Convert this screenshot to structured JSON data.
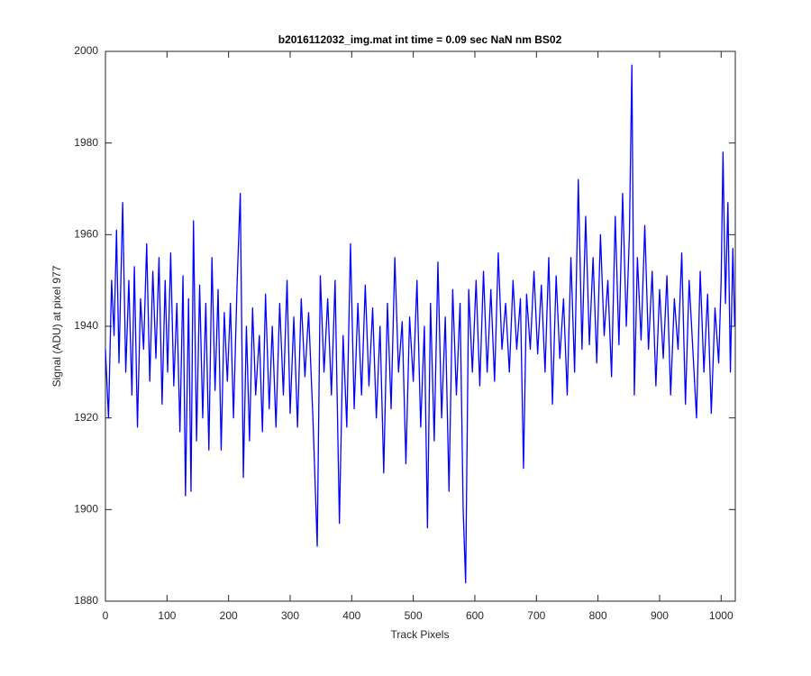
{
  "chart_data": {
    "type": "line",
    "title": "b2016112032_img.mat int time = 0.09 sec  NaN nm BS02",
    "xlabel": "Track Pixels",
    "ylabel": "Signal (ADU) at pixel 977",
    "xlim": [
      0,
      1023
    ],
    "ylim": [
      1880,
      2000
    ],
    "xticks": [
      0,
      100,
      200,
      300,
      400,
      500,
      600,
      700,
      800,
      900,
      1000
    ],
    "yticks": [
      1880,
      1900,
      1920,
      1940,
      1960,
      1980,
      2000
    ],
    "grid": false,
    "series": [
      {
        "color": "#0000ff",
        "x": [
          0,
          5,
          10,
          14,
          18,
          22,
          28,
          33,
          38,
          43,
          47,
          52,
          57,
          62,
          67,
          72,
          77,
          82,
          87,
          92,
          97,
          101,
          106,
          111,
          116,
          121,
          126,
          130,
          135,
          139,
          143,
          148,
          153,
          158,
          163,
          168,
          173,
          178,
          183,
          188,
          193,
          198,
          203,
          208,
          214,
          219,
          224,
          229,
          234,
          239,
          244,
          250,
          255,
          260,
          266,
          271,
          277,
          283,
          289,
          295,
          300,
          306,
          312,
          318,
          324,
          330,
          337,
          344,
          349,
          355,
          361,
          367,
          373,
          380,
          386,
          392,
          398,
          404,
          410,
          416,
          422,
          428,
          434,
          440,
          446,
          452,
          458,
          464,
          470,
          476,
          482,
          488,
          494,
          500,
          506,
          512,
          518,
          523,
          528,
          534,
          540,
          546,
          552,
          558,
          564,
          570,
          576,
          581,
          585,
          590,
          596,
          602,
          608,
          614,
          620,
          626,
          632,
          638,
          644,
          650,
          656,
          662,
          668,
          674,
          679,
          684,
          690,
          696,
          702,
          708,
          714,
          720,
          726,
          732,
          738,
          744,
          750,
          756,
          762,
          768,
          774,
          780,
          786,
          792,
          798,
          804,
          810,
          816,
          822,
          828,
          834,
          840,
          846,
          851,
          855,
          859,
          864,
          870,
          876,
          882,
          888,
          894,
          900,
          906,
          912,
          918,
          924,
          930,
          936,
          942,
          948,
          954,
          960,
          966,
          972,
          978,
          984,
          990,
          996,
          1000,
          1003,
          1007,
          1011,
          1015,
          1019,
          1022
        ],
        "values": [
          1935,
          1920,
          1950,
          1938,
          1961,
          1932,
          1967,
          1930,
          1950,
          1925,
          1953,
          1918,
          1946,
          1935,
          1958,
          1928,
          1952,
          1933,
          1955,
          1923,
          1950,
          1930,
          1956,
          1927,
          1945,
          1917,
          1951,
          1903,
          1946,
          1904,
          1963,
          1915,
          1949,
          1920,
          1945,
          1913,
          1955,
          1926,
          1948,
          1913,
          1943,
          1928,
          1945,
          1920,
          1950,
          1969,
          1907,
          1940,
          1915,
          1944,
          1925,
          1938,
          1917,
          1947,
          1922,
          1940,
          1918,
          1945,
          1925,
          1950,
          1921,
          1942,
          1918,
          1946,
          1929,
          1943,
          1920,
          1892,
          1951,
          1930,
          1946,
          1925,
          1950,
          1897,
          1938,
          1918,
          1958,
          1922,
          1945,
          1925,
          1949,
          1927,
          1944,
          1920,
          1940,
          1908,
          1945,
          1922,
          1955,
          1930,
          1941,
          1910,
          1942,
          1928,
          1950,
          1918,
          1940,
          1896,
          1945,
          1915,
          1954,
          1920,
          1942,
          1904,
          1948,
          1925,
          1945,
          1900,
          1884,
          1948,
          1930,
          1950,
          1927,
          1952,
          1930,
          1948,
          1928,
          1956,
          1935,
          1945,
          1930,
          1950,
          1935,
          1946,
          1909,
          1947,
          1935,
          1952,
          1934,
          1949,
          1930,
          1955,
          1923,
          1951,
          1933,
          1946,
          1925,
          1955,
          1930,
          1972,
          1935,
          1964,
          1936,
          1955,
          1932,
          1960,
          1938,
          1950,
          1929,
          1964,
          1936,
          1969,
          1940,
          1960,
          1997,
          1925,
          1955,
          1937,
          1962,
          1935,
          1952,
          1927,
          1948,
          1933,
          1951,
          1925,
          1946,
          1935,
          1956,
          1923,
          1950,
          1935,
          1920,
          1952,
          1930,
          1947,
          1921,
          1944,
          1932,
          1950,
          1978,
          1945,
          1967,
          1930,
          1957,
          1940
        ]
      }
    ]
  }
}
